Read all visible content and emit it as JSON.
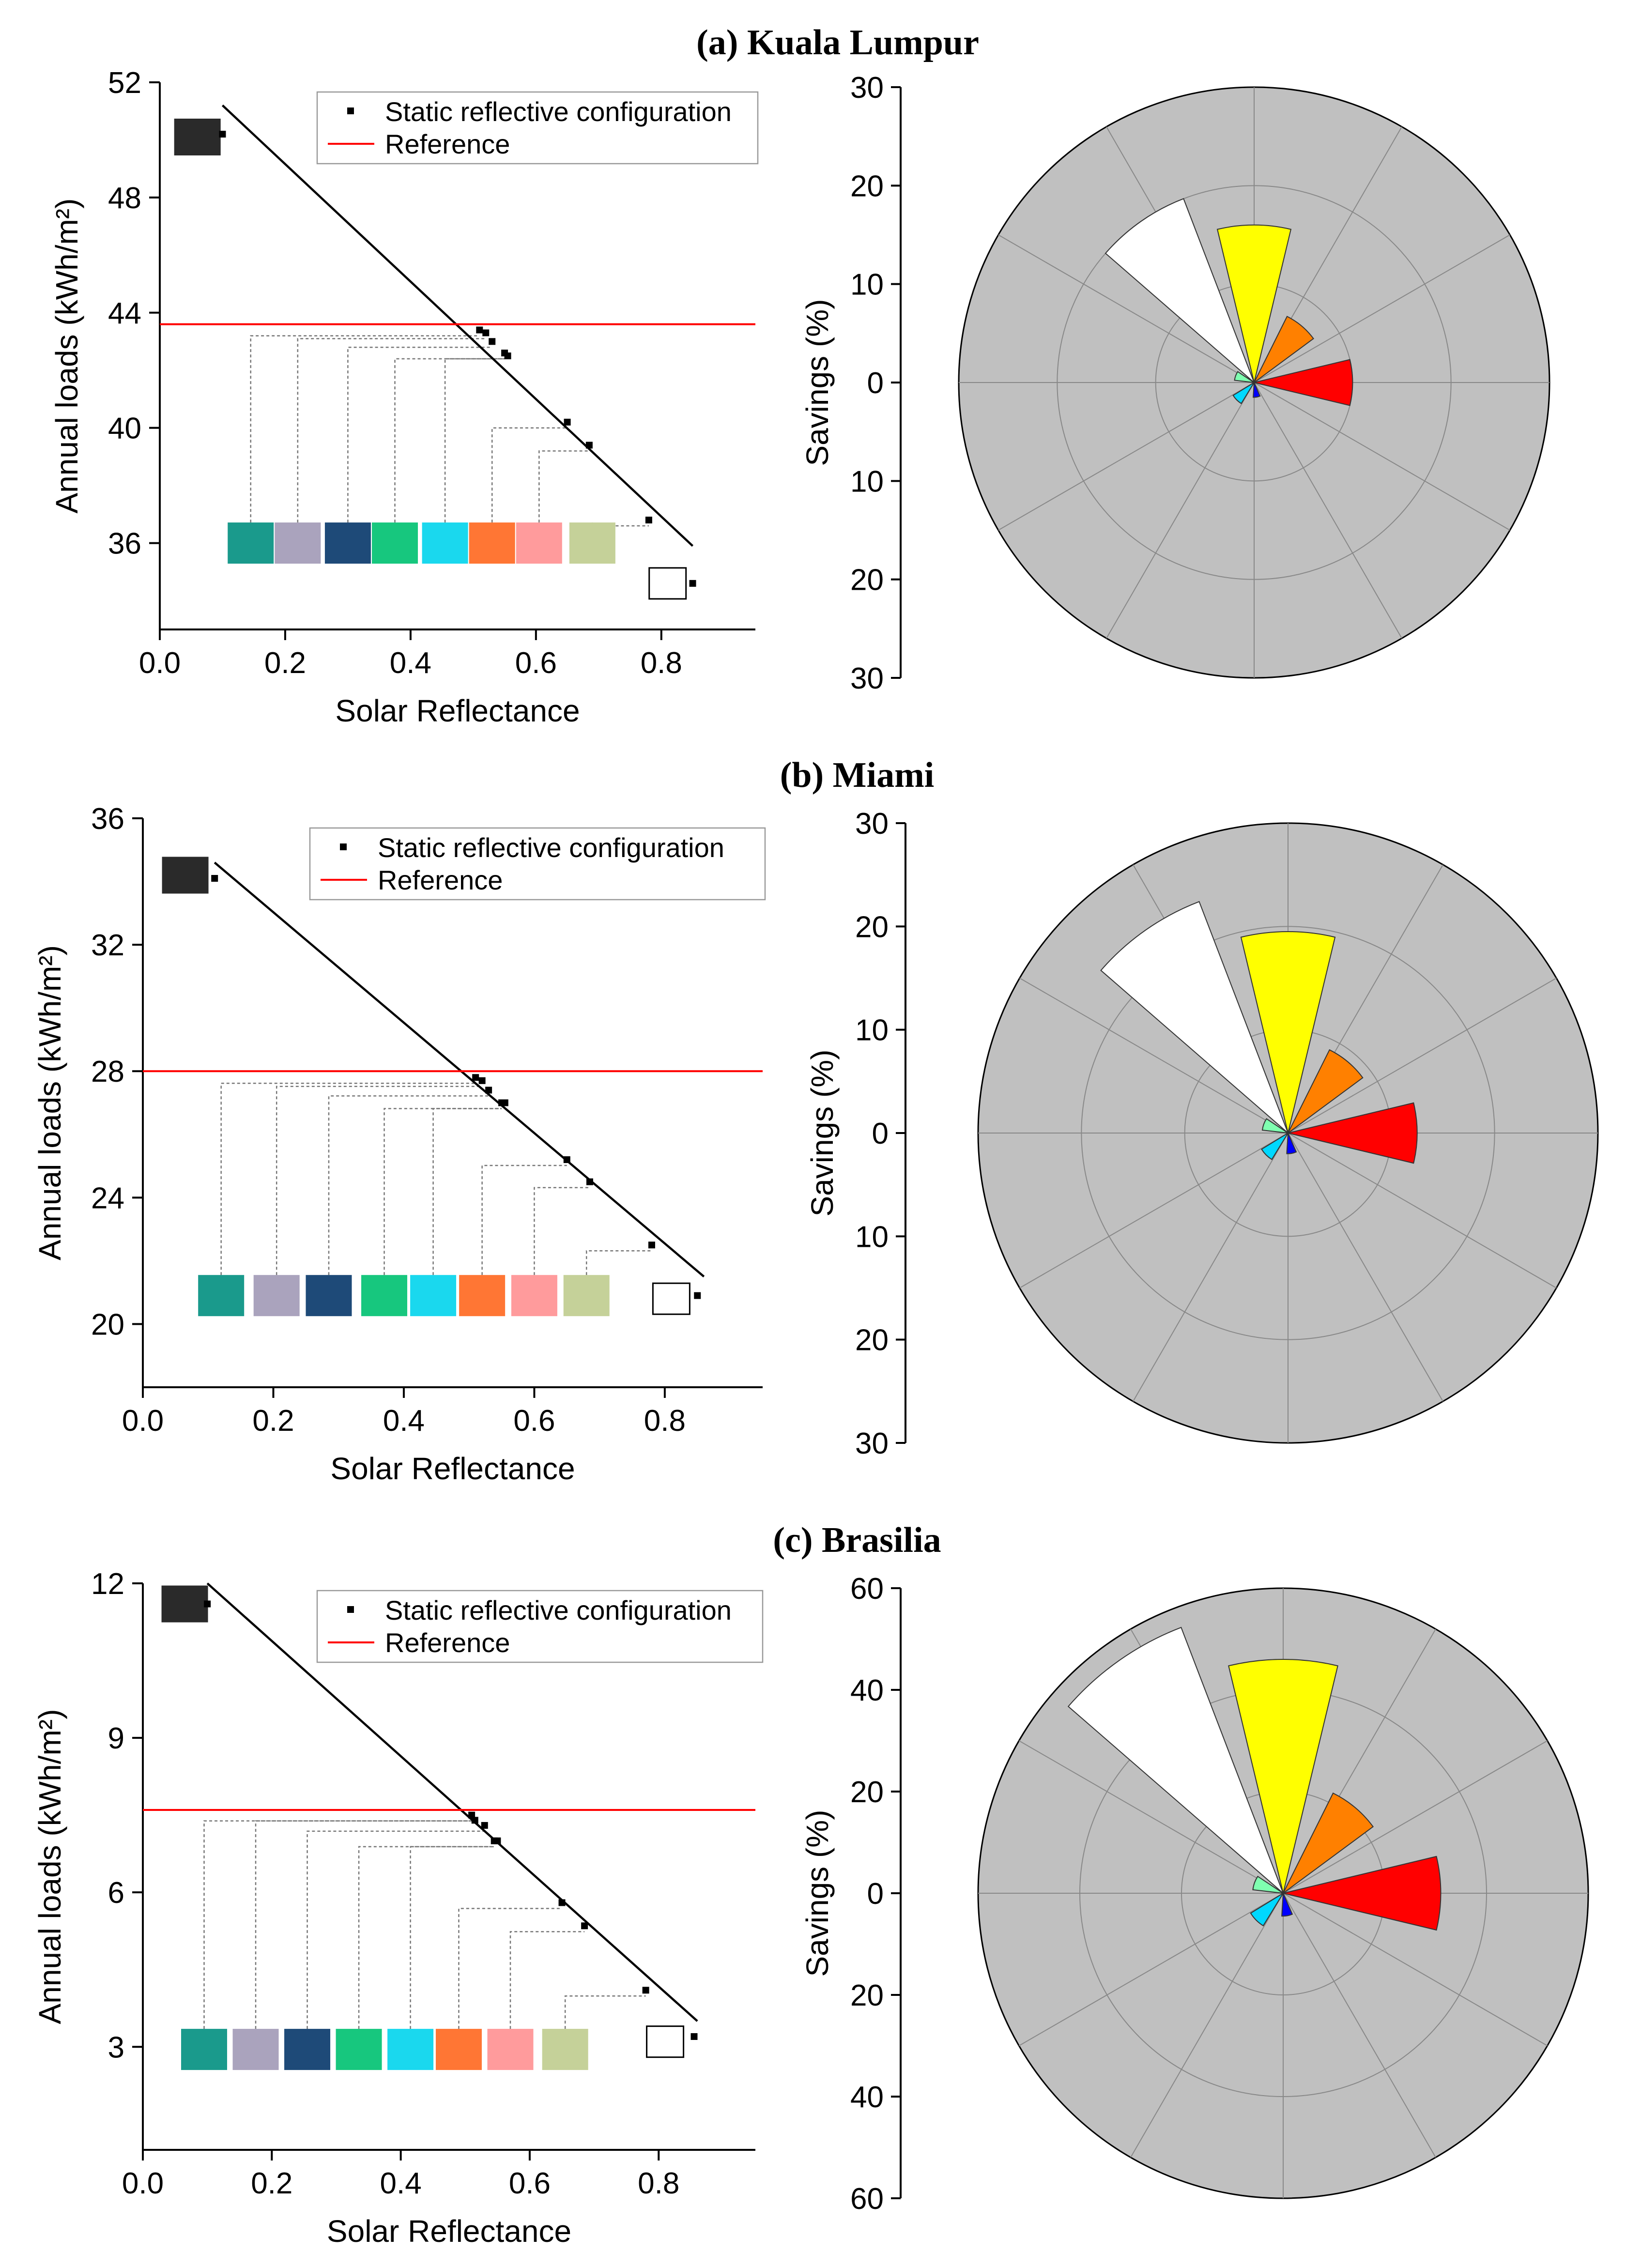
{
  "chart_data": [
    {
      "panel": "a",
      "title": "(a) Kuala Lumpur",
      "line_chart": {
        "type": "scatter",
        "xlabel": "Solar Reflectance",
        "ylabel": "Annual loads (kWh/m²)",
        "xlim": [
          0.0,
          0.95
        ],
        "ylim": [
          33,
          52
        ],
        "xticks": [
          "0.0",
          "0.2",
          "0.4",
          "0.6",
          "0.8"
        ],
        "yticks": [
          "36",
          "40",
          "44",
          "48",
          "52"
        ],
        "ytick_values": [
          36,
          40,
          44,
          48,
          52
        ],
        "legend": [
          "Static reflective configuration",
          "Reference"
        ],
        "reference_y": 43.6,
        "fit_line": [
          [
            0.1,
            51.2
          ],
          [
            0.85,
            35.9
          ]
        ],
        "points": [
          [
            0.1,
            50.2
          ],
          [
            0.51,
            43.4
          ],
          [
            0.52,
            43.3
          ],
          [
            0.53,
            43.0
          ],
          [
            0.55,
            42.6
          ],
          [
            0.555,
            42.5
          ],
          [
            0.65,
            40.2
          ],
          [
            0.685,
            39.4
          ],
          [
            0.78,
            36.8
          ],
          [
            0.85,
            34.6
          ]
        ],
        "swatch_x": [
          0.145,
          0.22,
          0.3,
          0.375,
          0.455,
          0.53,
          0.605,
          0.69
        ],
        "swatch_y": 36,
        "connector_targets": [
          0.51,
          0.52,
          0.53,
          0.555,
          0.555,
          0.65,
          0.685,
          0.78
        ],
        "white_swatch_xy": [
          0.81,
          34.6
        ],
        "black_swatch_xy": [
          0.06,
          50.1
        ]
      },
      "rose_chart": {
        "type": "polar-bar",
        "ylabel": "Savings (%)",
        "rmax": 30,
        "ticks": [
          "30",
          "20",
          "10",
          "0",
          "10",
          "20",
          "30"
        ],
        "tick_values": [
          30,
          20,
          10,
          0,
          10,
          20,
          30
        ],
        "bars": [
          {
            "color": "#ffffff",
            "angle_deg": -35,
            "width_deg": 28,
            "value": 20
          },
          {
            "color": "#ffff00",
            "angle_deg": 0,
            "width_deg": 27,
            "value": 16
          },
          {
            "color": "#ff8000",
            "angle_deg": 40,
            "width_deg": 27,
            "value": 7.5
          },
          {
            "color": "#ff0000",
            "angle_deg": 90,
            "width_deg": 27,
            "value": 10
          },
          {
            "color": "#0000ff",
            "angle_deg": 170,
            "width_deg": 27,
            "value": 1.5
          },
          {
            "color": "#00d8ff",
            "angle_deg": 225,
            "width_deg": 27,
            "value": 2.5
          },
          {
            "color": "#7fffb0",
            "angle_deg": 290,
            "width_deg": 27,
            "value": 2
          }
        ]
      }
    },
    {
      "panel": "b",
      "title": "(b) Miami",
      "line_chart": {
        "type": "scatter",
        "xlabel": "Solar Reflectance",
        "ylabel": "Annual loads (kWh/m²)",
        "xlim": [
          0.0,
          0.95
        ],
        "ylim": [
          18,
          36
        ],
        "xticks": [
          "0.0",
          "0.2",
          "0.4",
          "0.6",
          "0.8"
        ],
        "yticks": [
          "20",
          "24",
          "28",
          "32",
          "36"
        ],
        "ytick_values": [
          20,
          24,
          28,
          32,
          36
        ],
        "legend": [
          "Static reflective configuration",
          "Reference"
        ],
        "reference_y": 28,
        "fit_line": [
          [
            0.11,
            34.6
          ],
          [
            0.86,
            21.5
          ]
        ],
        "points": [
          [
            0.11,
            34.1
          ],
          [
            0.51,
            27.8
          ],
          [
            0.52,
            27.7
          ],
          [
            0.53,
            27.4
          ],
          [
            0.55,
            27.0
          ],
          [
            0.555,
            27.0
          ],
          [
            0.65,
            25.2
          ],
          [
            0.685,
            24.5
          ],
          [
            0.78,
            22.5
          ],
          [
            0.85,
            20.9
          ]
        ],
        "swatch_x": [
          0.12,
          0.205,
          0.285,
          0.37,
          0.445,
          0.52,
          0.6,
          0.68
        ],
        "swatch_y": 20.9,
        "connector_targets": [
          0.51,
          0.52,
          0.53,
          0.555,
          0.555,
          0.65,
          0.685,
          0.78
        ],
        "white_swatch_xy": [
          0.81,
          20.8
        ],
        "black_swatch_xy": [
          0.065,
          34.2
        ]
      },
      "rose_chart": {
        "type": "polar-bar",
        "ylabel": "Savings (%)",
        "rmax": 30,
        "ticks": [
          "30",
          "20",
          "10",
          "0",
          "10",
          "20",
          "30"
        ],
        "tick_values": [
          30,
          20,
          10,
          0,
          10,
          20,
          30
        ],
        "bars": [
          {
            "color": "#ffffff",
            "angle_deg": -35,
            "width_deg": 28,
            "value": 24
          },
          {
            "color": "#ffff00",
            "angle_deg": 0,
            "width_deg": 27,
            "value": 19.5
          },
          {
            "color": "#ff8000",
            "angle_deg": 40,
            "width_deg": 27,
            "value": 9
          },
          {
            "color": "#ff0000",
            "angle_deg": 90,
            "width_deg": 27,
            "value": 12.5
          },
          {
            "color": "#0000ff",
            "angle_deg": 170,
            "width_deg": 27,
            "value": 2
          },
          {
            "color": "#00d8ff",
            "angle_deg": 225,
            "width_deg": 27,
            "value": 3
          },
          {
            "color": "#7fffb0",
            "angle_deg": 290,
            "width_deg": 27,
            "value": 2.5
          }
        ]
      }
    },
    {
      "panel": "c",
      "title": "(c) Brasilia",
      "line_chart": {
        "type": "scatter",
        "xlabel": "Solar Reflectance",
        "ylabel": "Annual loads (kWh/m²)",
        "xlim": [
          0.0,
          0.95
        ],
        "ylim": [
          1,
          12
        ],
        "xticks": [
          "0.0",
          "0.2",
          "0.4",
          "0.6",
          "0.8"
        ],
        "yticks": [
          "3",
          "6",
          "9",
          "12"
        ],
        "ytick_values": [
          3,
          6,
          9,
          12
        ],
        "legend": [
          "Static reflective configuration",
          "Reference"
        ],
        "reference_y": 7.6,
        "fit_line": [
          [
            0.1,
            12.0
          ],
          [
            0.86,
            3.5
          ]
        ],
        "points": [
          [
            0.1,
            11.6
          ],
          [
            0.51,
            7.5
          ],
          [
            0.515,
            7.4
          ],
          [
            0.53,
            7.3
          ],
          [
            0.545,
            7.0
          ],
          [
            0.55,
            7.0
          ],
          [
            0.65,
            5.8
          ],
          [
            0.685,
            5.35
          ],
          [
            0.78,
            4.1
          ],
          [
            0.855,
            3.2
          ]
        ],
        "swatch_x": [
          0.095,
          0.175,
          0.255,
          0.335,
          0.415,
          0.49,
          0.57,
          0.655
        ],
        "swatch_y": 2.95,
        "connector_targets": [
          0.51,
          0.515,
          0.53,
          0.55,
          0.55,
          0.65,
          0.685,
          0.78
        ],
        "white_swatch_xy": [
          0.81,
          3.1
        ],
        "black_swatch_xy": [
          0.065,
          11.6
        ]
      },
      "rose_chart": {
        "type": "polar-bar",
        "ylabel": "Savings (%)",
        "rmax": 60,
        "ticks": [
          "60",
          "40",
          "20",
          "0",
          "20",
          "40",
          "60"
        ],
        "tick_values": [
          60,
          40,
          20,
          0,
          20,
          40,
          60
        ],
        "bars": [
          {
            "color": "#ffffff",
            "angle_deg": -35,
            "width_deg": 28,
            "value": 56
          },
          {
            "color": "#ffff00",
            "angle_deg": 0,
            "width_deg": 27,
            "value": 46
          },
          {
            "color": "#ff8000",
            "angle_deg": 40,
            "width_deg": 27,
            "value": 22
          },
          {
            "color": "#ff0000",
            "angle_deg": 90,
            "width_deg": 27,
            "value": 31
          },
          {
            "color": "#0000ff",
            "angle_deg": 170,
            "width_deg": 27,
            "value": 4.5
          },
          {
            "color": "#00d8ff",
            "angle_deg": 225,
            "width_deg": 27,
            "value": 7.5
          },
          {
            "color": "#7fffb0",
            "angle_deg": 290,
            "width_deg": 27,
            "value": 6
          }
        ]
      }
    }
  ],
  "swatch_colors": [
    "#1a9a8c",
    "#aaa3bd",
    "#1e4a78",
    "#17c77e",
    "#1ad8ee",
    "#ff7634",
    "#ff9b9c",
    "#c5d199"
  ],
  "rose_background": "#c0c0c0",
  "reference_color": "#ff0000",
  "black_swatch_color": "#2a2a2a"
}
